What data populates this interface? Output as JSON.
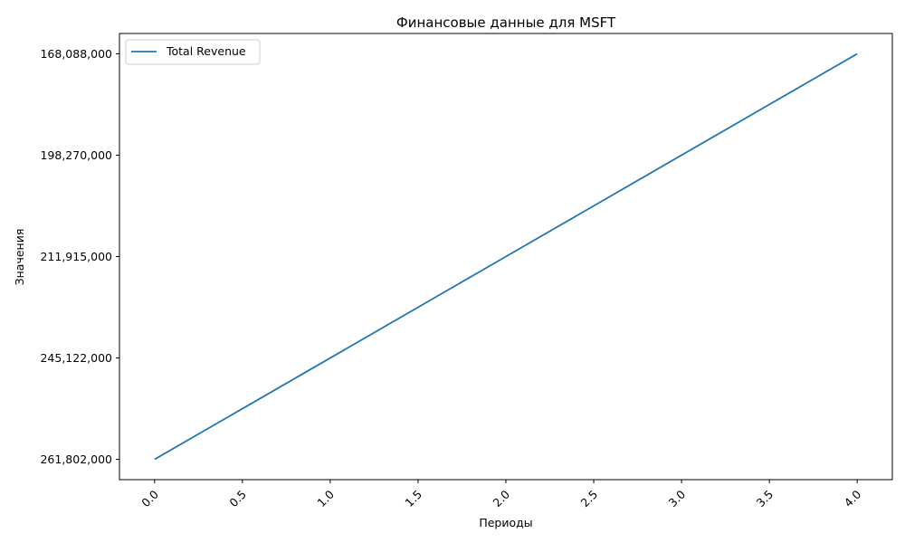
{
  "chart_data": {
    "type": "line",
    "title": "Финансовые данные для MSFT",
    "xlabel": "Периоды",
    "ylabel": "Значения",
    "x": [
      0,
      1,
      2,
      3,
      4
    ],
    "x_ticks": [
      "0.0",
      "0.5",
      "1.0",
      "1.5",
      "2.0",
      "2.5",
      "3.0",
      "3.5",
      "4.0"
    ],
    "x_tick_values": [
      0,
      0.5,
      1,
      1.5,
      2,
      2.5,
      3,
      3.5,
      4
    ],
    "y_categories": [
      "261,802,000",
      "245,122,000",
      "211,915,000",
      "198,270,000",
      "168,088,000"
    ],
    "series": [
      {
        "name": "Total Revenue",
        "color": "#1f77b4",
        "values": [
          "261,802,000",
          "245,122,000",
          "211,915,000",
          "198,270,000",
          "168,088,000"
        ]
      }
    ],
    "xlim": [
      -0.2,
      4.2
    ],
    "ylim": [
      -0.2,
      4.2
    ],
    "grid": false,
    "legend_position": "top-left"
  }
}
